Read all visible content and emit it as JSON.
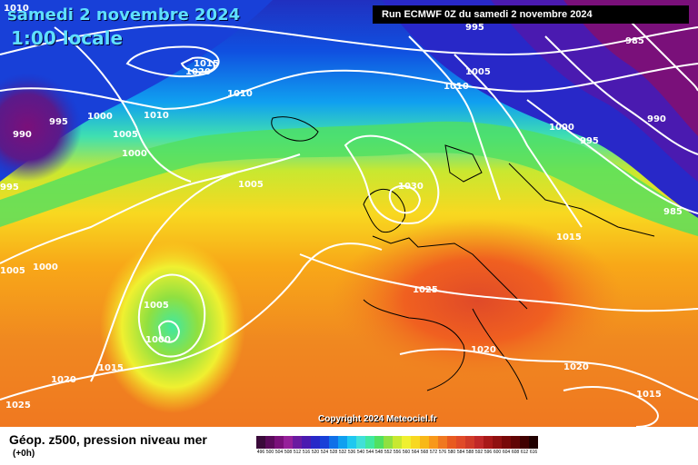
{
  "header": {
    "date": "samedi 2 novembre 2024",
    "time": "1:00 locale",
    "run": "Run ECMWF 0Z du samedi 2 novembre 2024"
  },
  "copyright": "Copyright 2024 Meteociel.fr",
  "footer": {
    "title": "Géop. z500, pression niveau mer",
    "subtitle": "(+0h)"
  },
  "isobar_labels": [
    {
      "text": "1010"
    },
    {
      "text": "1015"
    },
    {
      "text": "1020"
    },
    {
      "text": "995"
    },
    {
      "text": "1000"
    },
    {
      "text": "990"
    },
    {
      "text": "1010"
    },
    {
      "text": "1005"
    },
    {
      "text": "1000"
    },
    {
      "text": "995"
    },
    {
      "text": "1005"
    },
    {
      "text": "1000"
    },
    {
      "text": "1005"
    },
    {
      "text": "1005"
    },
    {
      "text": "1000"
    },
    {
      "text": "1015"
    },
    {
      "text": "1020"
    },
    {
      "text": "1025"
    },
    {
      "text": "995"
    },
    {
      "text": "1005"
    },
    {
      "text": "1010"
    },
    {
      "text": "985"
    },
    {
      "text": "1000"
    },
    {
      "text": "995"
    },
    {
      "text": "990"
    },
    {
      "text": "985"
    },
    {
      "text": "1030"
    },
    {
      "text": "1015"
    },
    {
      "text": "1025"
    },
    {
      "text": "1020"
    },
    {
      "text": "1020"
    },
    {
      "text": "1015"
    },
    {
      "text": "1010"
    }
  ],
  "legend": {
    "labels": [
      "496",
      "500",
      "504",
      "508",
      "512",
      "516",
      "520",
      "524",
      "528",
      "532",
      "536",
      "540",
      "544",
      "548",
      "552",
      "556",
      "560",
      "564",
      "568",
      "572",
      "576",
      "580",
      "584",
      "588",
      "592",
      "596",
      "600",
      "604",
      "608",
      "612",
      "616"
    ],
    "colors": [
      "#3a0a3a",
      "#5a0a5a",
      "#7a107a",
      "#96209a",
      "#6a1aa0",
      "#4a1ab0",
      "#2828c8",
      "#1840d8",
      "#1070e8",
      "#10a0f0",
      "#20c8f0",
      "#40e0d8",
      "#40e8a0",
      "#50e060",
      "#90e040",
      "#c8e830",
      "#f0f030",
      "#f8d820",
      "#f8b818",
      "#f8981a",
      "#f07820",
      "#e85a20",
      "#e04a28",
      "#d03a28",
      "#c02828",
      "#a81818",
      "#901010",
      "#780808",
      "#600404",
      "#400000",
      "#200000"
    ]
  }
}
